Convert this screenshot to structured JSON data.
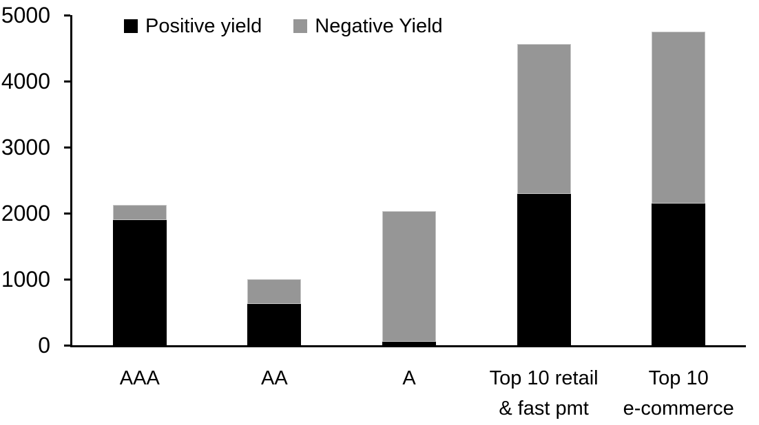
{
  "chart_data": {
    "type": "bar",
    "stacked": true,
    "title": "",
    "xlabel": "",
    "ylabel": "",
    "categories": [
      "AAA",
      "AA",
      "A",
      "Top 10 retail\n& fast pmt",
      "Top 10\ne-commerce"
    ],
    "series": [
      {
        "name": "Positive yield",
        "color": "#000000",
        "values": [
          1900,
          620,
          50,
          2290,
          2150
        ]
      },
      {
        "name": "Negative Yield",
        "color": "#969696",
        "values": [
          220,
          380,
          1980,
          2270,
          2600
        ]
      }
    ],
    "totals": [
      2120,
      1000,
      2030,
      4560,
      4750
    ],
    "ylim": [
      0,
      5000
    ],
    "yticks": [
      0,
      1000,
      2000,
      3000,
      4000,
      5000
    ],
    "grid": false,
    "legend_position": "top",
    "axis_color": "#000000",
    "background_color": "#ffffff"
  }
}
